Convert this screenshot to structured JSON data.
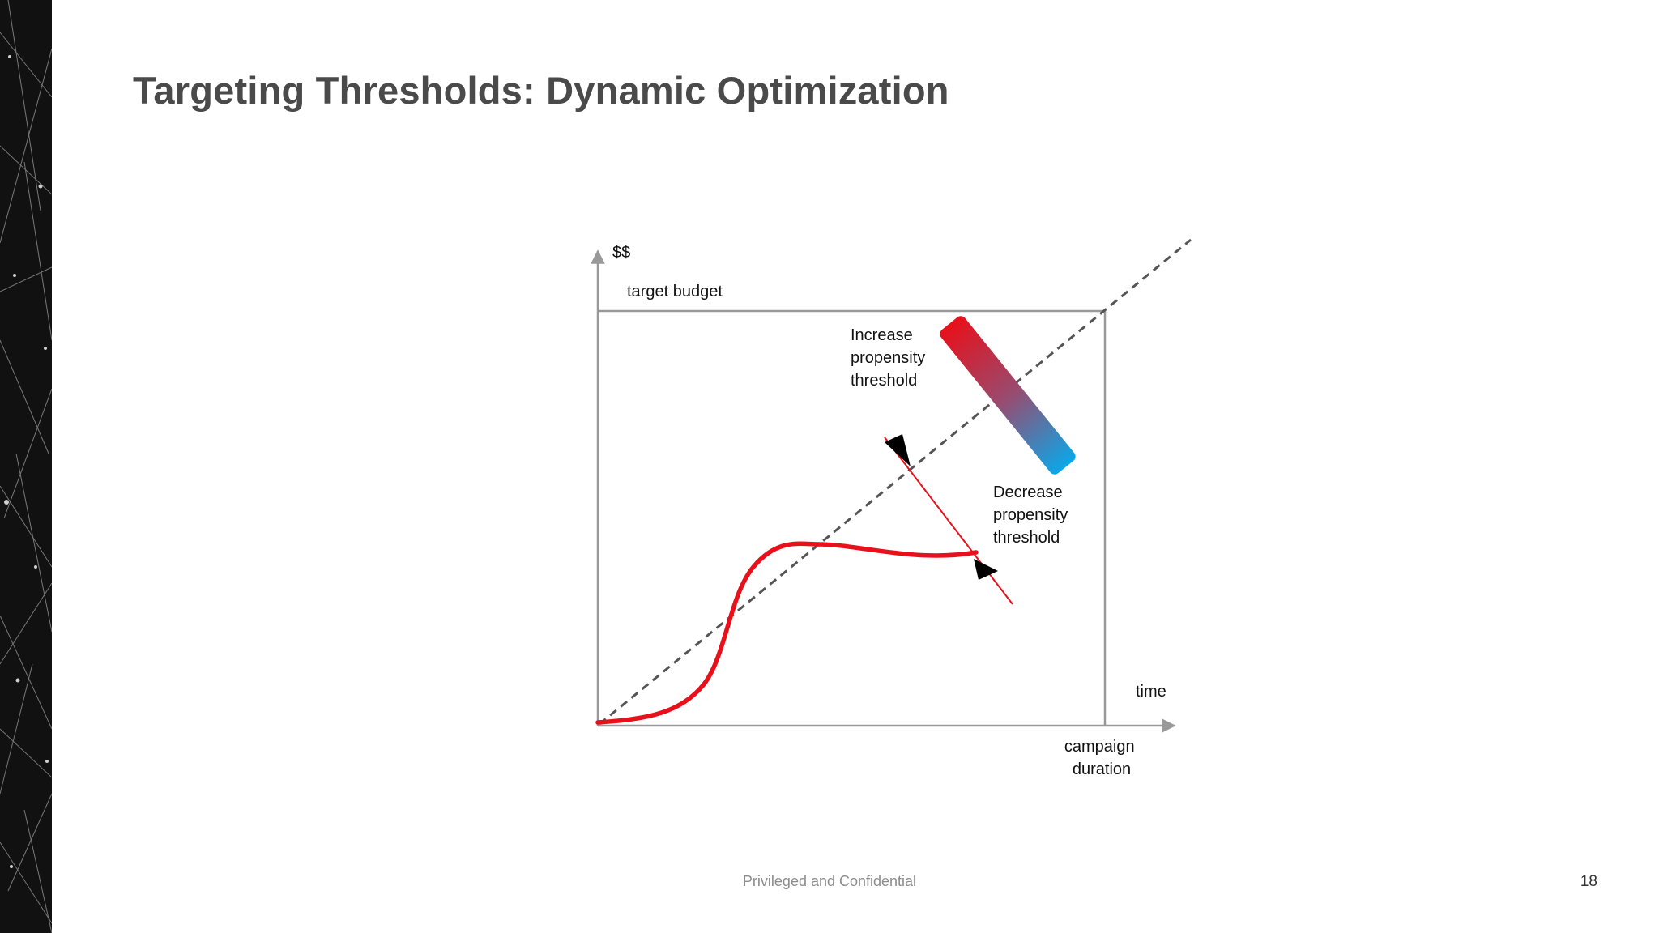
{
  "slide": {
    "title": "Targeting Thresholds: Dynamic Optimization",
    "footer": "Privileged and Confidential",
    "page_number": "18"
  },
  "diagram": {
    "y_axis_label": "$$",
    "target_budget_label": "target budget",
    "x_axis_label": "time",
    "campaign_duration_label": [
      "campaign",
      "duration"
    ],
    "increase_label": [
      "Increase",
      "propensity",
      "threshold"
    ],
    "decrease_label": [
      "Decrease",
      "propensity",
      "threshold"
    ],
    "gradient_colors": {
      "top": "#e8101a",
      "bottom": "#0aa7e8"
    },
    "spend_curve_color": "#e8101a",
    "pace_line_color": "#555555"
  },
  "colors": {
    "title": "#4a4a4a",
    "axis": "#999999",
    "footer": "#8c8c8c"
  }
}
